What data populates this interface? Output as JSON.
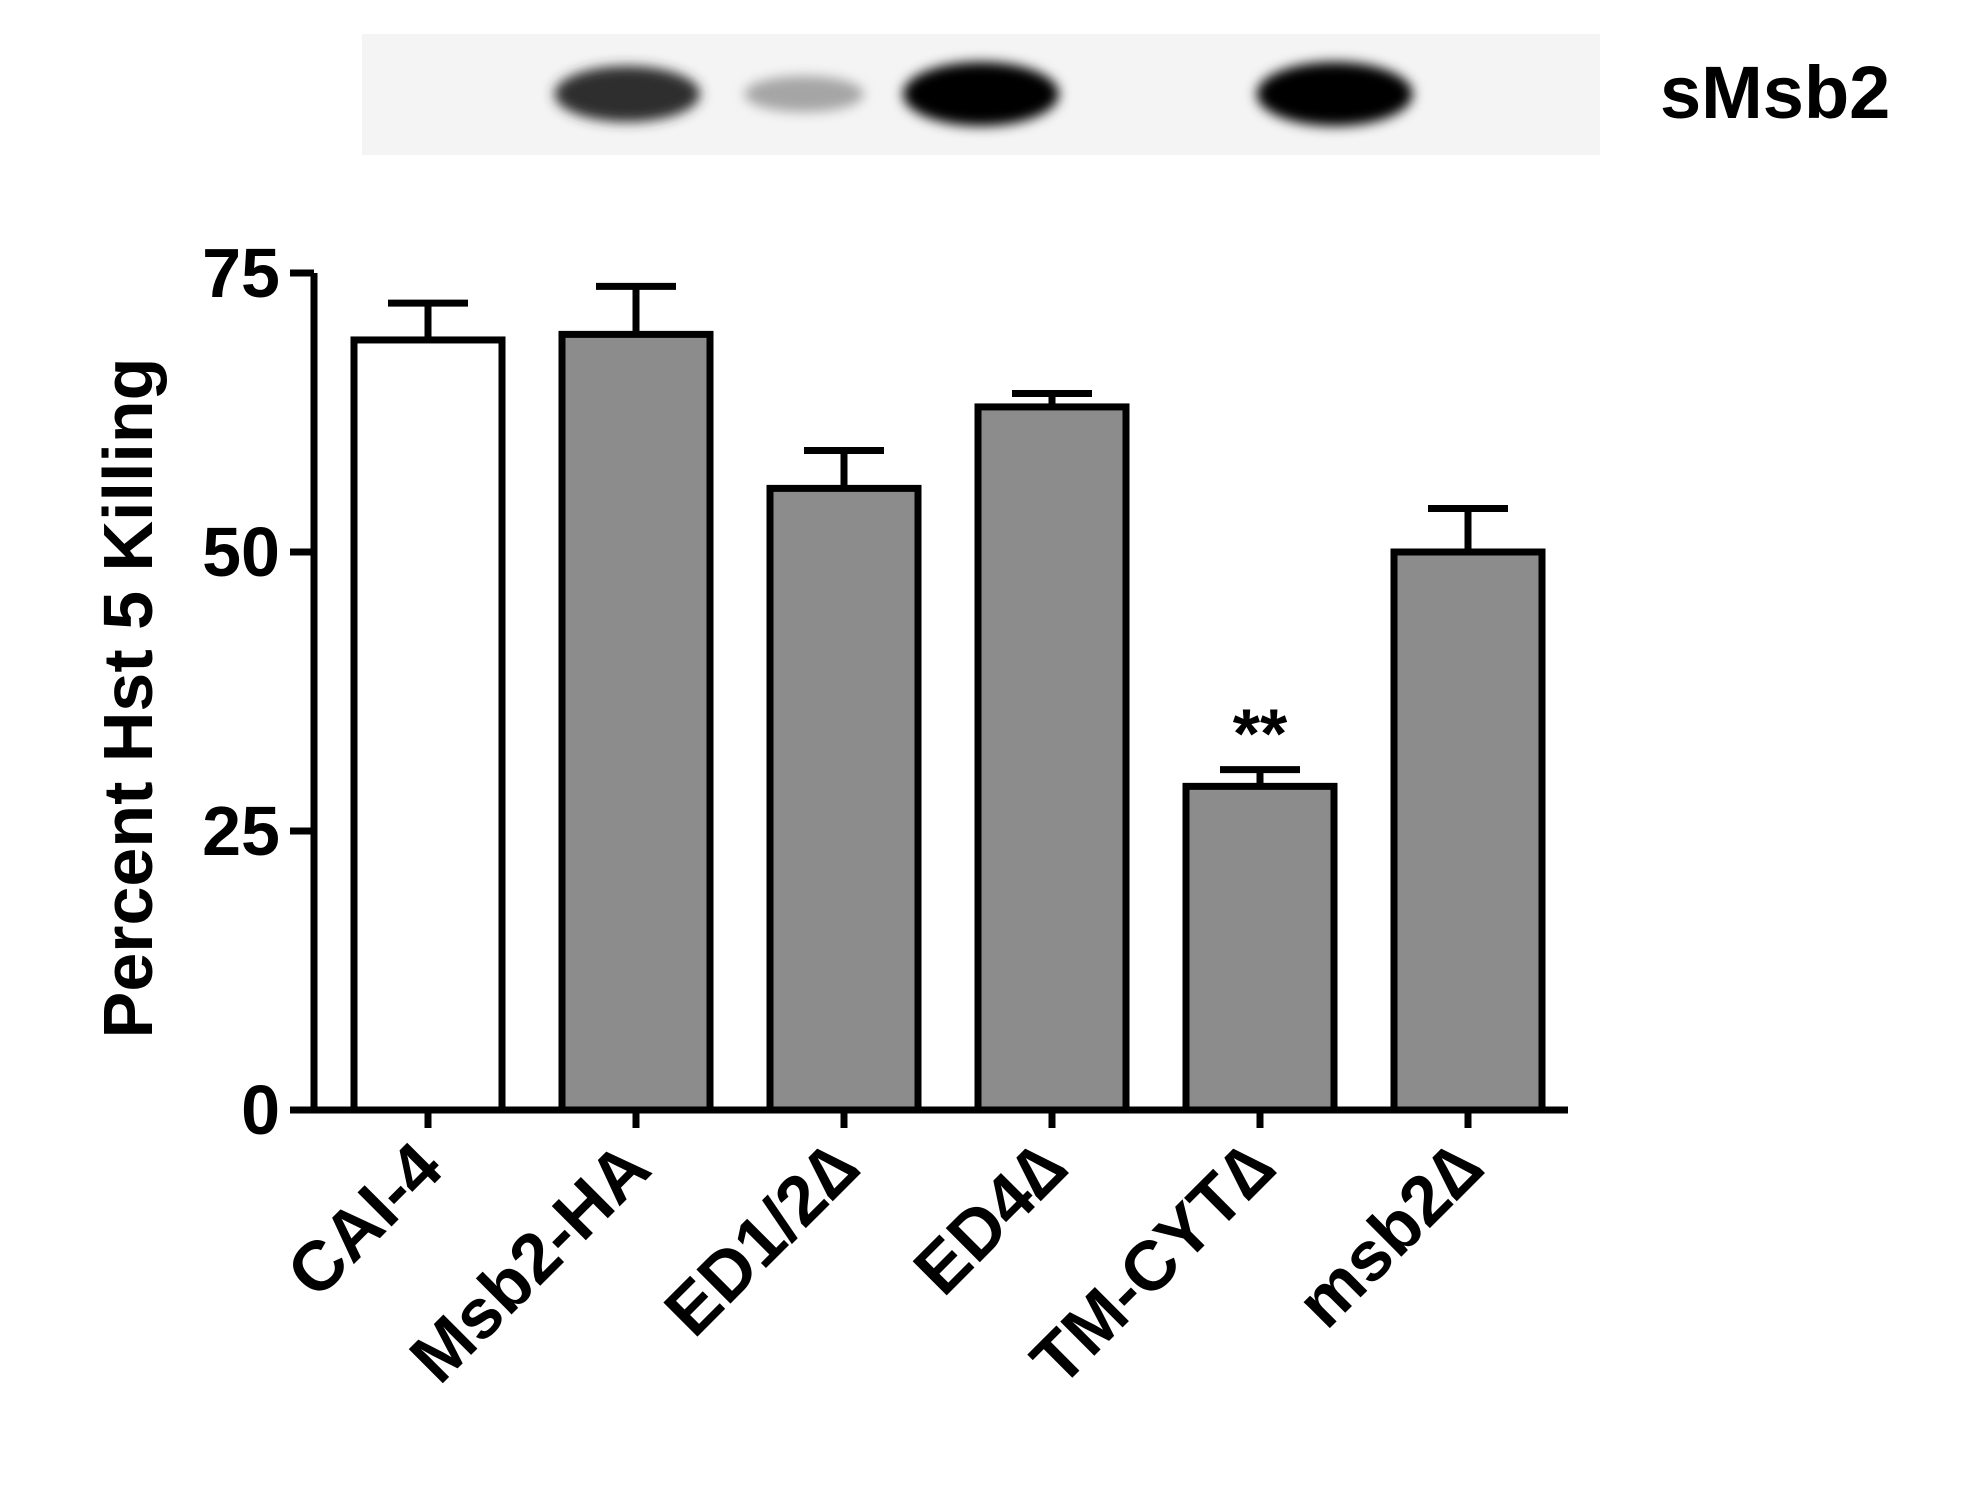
{
  "blot": {
    "label": "sMsb2",
    "band_intensity": [
      0.0,
      0.8,
      0.3,
      1.0,
      0.0,
      1.0,
      0.0
    ]
  },
  "chart_data": {
    "type": "bar",
    "ylabel": "Percent Hst 5 Killing",
    "ylim": [
      0,
      75
    ],
    "yticks": [
      "0",
      "25",
      "50",
      "75"
    ],
    "ytick_values": [
      0,
      25,
      50,
      75
    ],
    "categories": [
      "CAI-4",
      "Msb2-HA",
      "ED1/2∆",
      "ED4∆",
      "TM-CYT∆",
      "msb2∆"
    ],
    "values": [
      69,
      69.5,
      55.7,
      63,
      29,
      50
    ],
    "errors": [
      3.3,
      4.3,
      3.4,
      1.2,
      1.5,
      3.9
    ],
    "bar_fills": [
      "#ffffff",
      "#8c8c8c",
      "#8c8c8c",
      "#8c8c8c",
      "#8c8c8c",
      "#8c8c8c"
    ],
    "annotations": [
      {
        "category_index": 4,
        "text": "**"
      }
    ],
    "grid": false,
    "legend": "none"
  }
}
